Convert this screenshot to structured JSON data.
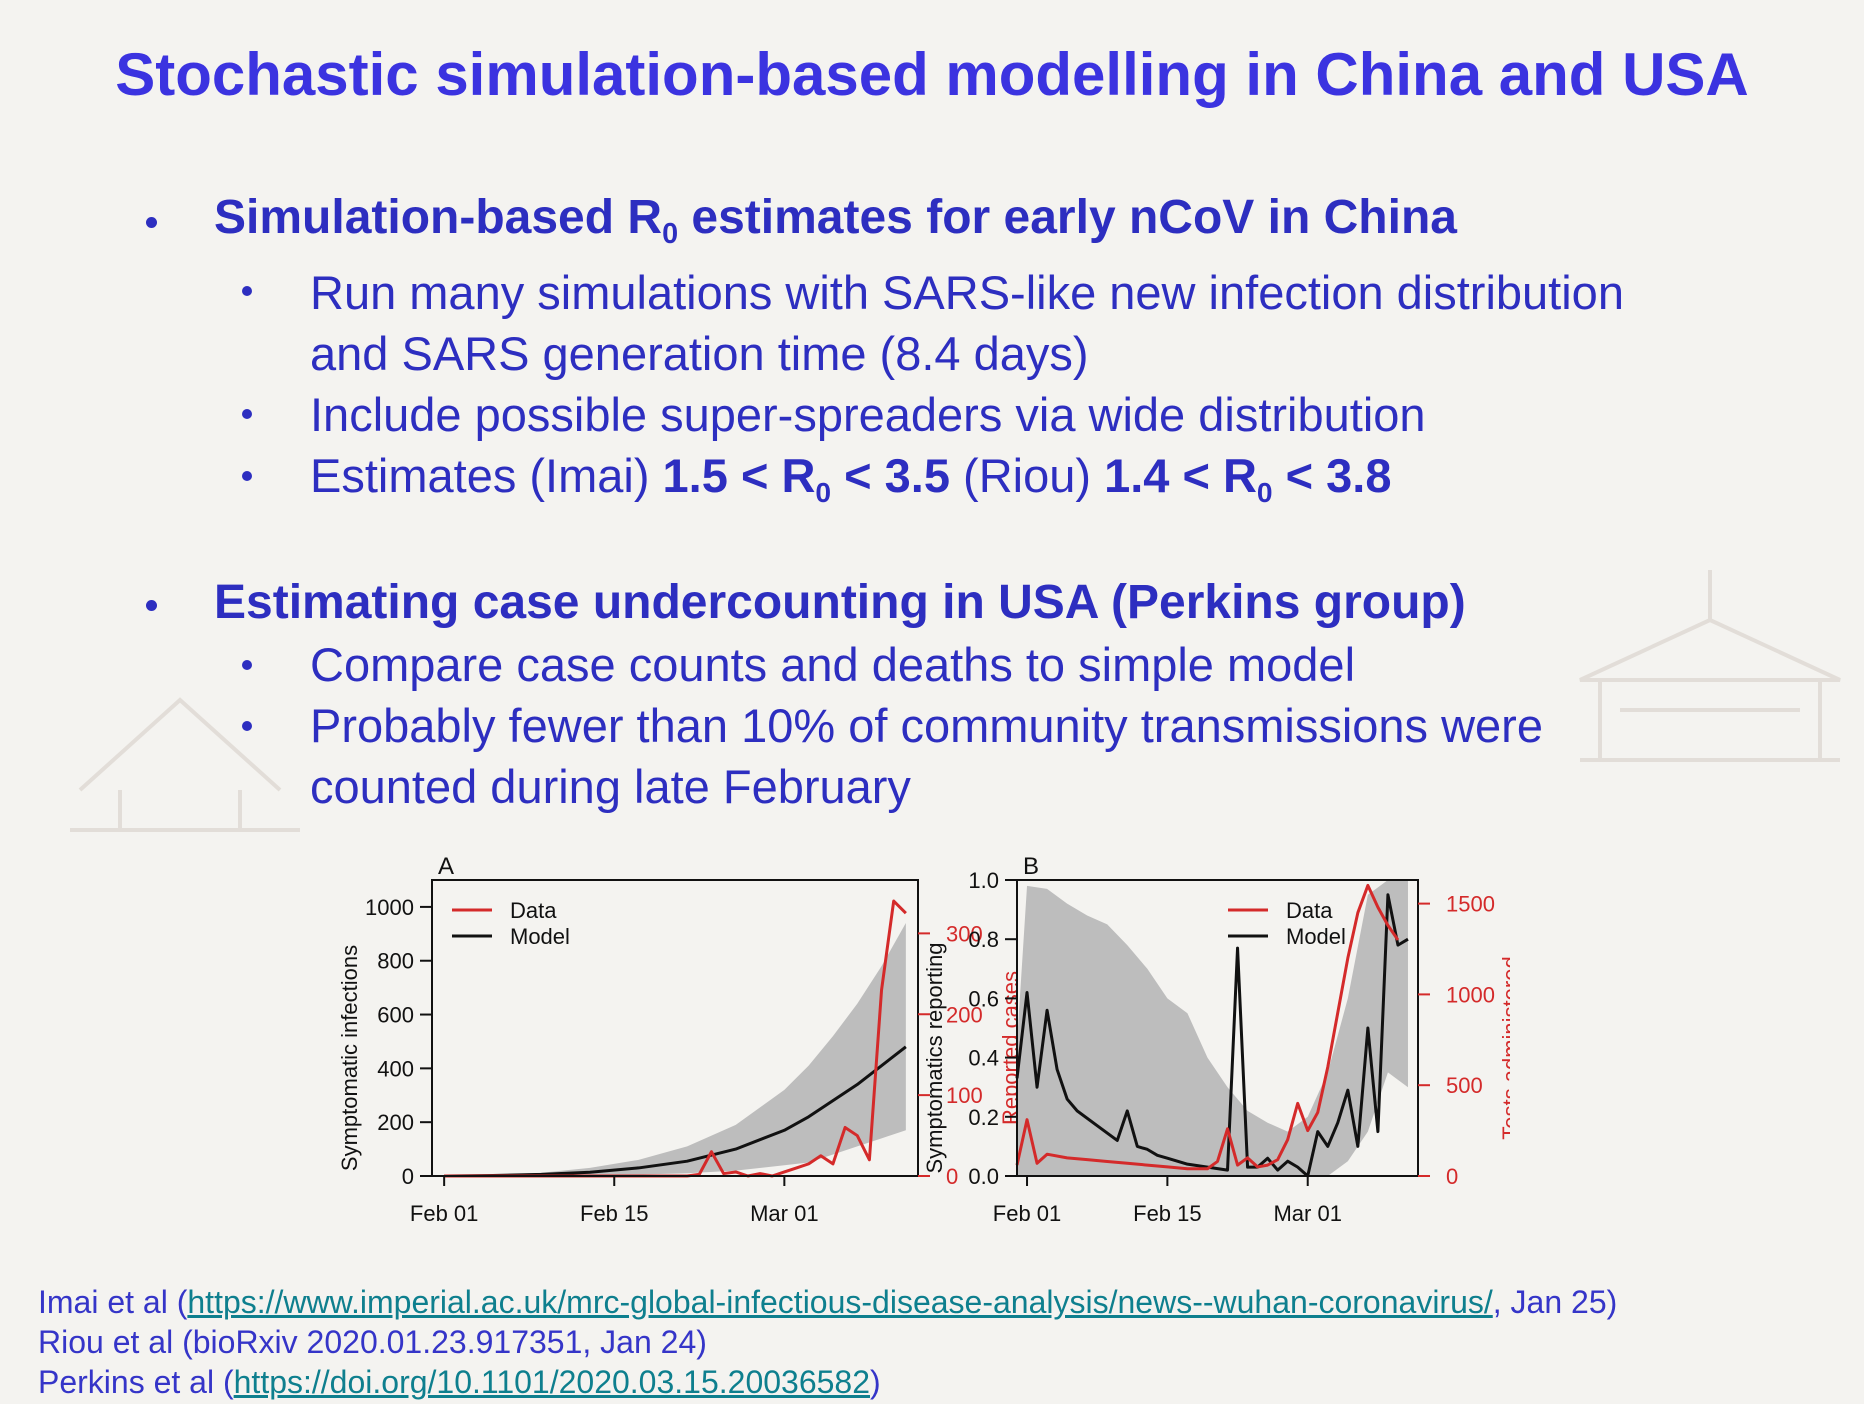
{
  "title": "Stochastic simulation-based modelling in China and USA",
  "bullet1": {
    "heading_pre": "Simulation-based R",
    "heading_sub": "0",
    "heading_post": " estimates for early nCoV in China",
    "sub1_line1": "Run many simulations with SARS-like new infection distribution",
    "sub1_line2": "and SARS generation time (8.4 days)",
    "sub2": "Include possible super-spreaders via wide distribution",
    "sub3": {
      "a": "Estimates (Imai) ",
      "b": "1.5 < R",
      "b_sub": "0",
      "c": " < 3.5",
      "d": " (Riou) ",
      "e": "1.4 < R",
      "e_sub": "0",
      "f": " < 3.8"
    }
  },
  "bullet2": {
    "heading": "Estimating case undercounting in USA (Perkins group)",
    "sub1": "Compare case counts and deaths to simple model",
    "sub2_line1": "Probably fewer than 10% of community transmissions were",
    "sub2_line2": "counted during late February"
  },
  "refs": {
    "imai": {
      "pre": "Imai et al (",
      "link": "https://www.imperial.ac.uk/mrc-global-infectious-disease-analysis/news--wuhan-coronavirus/",
      "post": ", Jan 25)"
    },
    "riou": "Riou et al (bioRxiv 2020.01.23.917351, Jan 24)",
    "perkins": {
      "pre": "Perkins et al (",
      "link": "https://doi.org/10.1101/2020.03.15.20036582",
      "post": ")"
    }
  },
  "colors": {
    "title": "#3b33e0",
    "text": "#2d2ec0",
    "link": "#0e7f8e",
    "data_line": "#d42a2a",
    "model_line": "#111111",
    "band": "#bdbdbd"
  },
  "chart_data": [
    {
      "type": "line",
      "panel_label": "A",
      "xlabel": "",
      "x_ticks": [
        "Feb 01",
        "Feb 15",
        "Mar 01"
      ],
      "x_tick_days": [
        0,
        14,
        28
      ],
      "xlim_days": [
        -1,
        39
      ],
      "ylabel": "Symptomatic infections",
      "ylim": [
        0,
        1100
      ],
      "y_ticks": [
        0,
        200,
        400,
        600,
        800,
        1000
      ],
      "ylabel_right": "Reported cases",
      "ylim_right": [
        0,
        366
      ],
      "y_ticks_right": [
        0,
        100,
        200,
        300
      ],
      "legend": [
        "Data",
        "Model"
      ],
      "legend_position": "top-left",
      "series": [
        {
          "name": "Model",
          "axis": "left",
          "x_days": [
            0,
            4,
            8,
            12,
            16,
            20,
            24,
            28,
            30,
            32,
            34,
            36,
            38
          ],
          "values": [
            0,
            2,
            6,
            14,
            30,
            55,
            100,
            170,
            220,
            280,
            340,
            410,
            480
          ]
        },
        {
          "name": "Model range",
          "axis": "left",
          "band": true,
          "x_days": [
            0,
            4,
            8,
            12,
            16,
            20,
            24,
            28,
            30,
            32,
            34,
            36,
            38
          ],
          "lower": [
            0,
            0,
            0,
            2,
            5,
            10,
            20,
            40,
            50,
            80,
            110,
            140,
            170
          ],
          "upper": [
            0,
            4,
            12,
            30,
            60,
            110,
            190,
            320,
            410,
            520,
            640,
            780,
            940
          ]
        },
        {
          "name": "Data",
          "axis": "right",
          "x_days": [
            0,
            4,
            8,
            12,
            16,
            20,
            21,
            22,
            23,
            24,
            25,
            26,
            27,
            28,
            29,
            30,
            31,
            32,
            33,
            34,
            35,
            36,
            37,
            38
          ],
          "values": [
            0,
            0,
            0,
            0,
            0,
            0,
            2,
            30,
            3,
            5,
            0,
            3,
            0,
            5,
            10,
            15,
            25,
            15,
            60,
            50,
            20,
            230,
            340,
            325
          ]
        }
      ]
    },
    {
      "type": "line",
      "panel_label": "B",
      "xlabel": "",
      "x_ticks": [
        "Feb 01",
        "Feb 15",
        "Mar 01"
      ],
      "x_tick_days": [
        0,
        14,
        28
      ],
      "xlim_days": [
        -1,
        39
      ],
      "ylabel": "Symptomatics reporting",
      "ylim": [
        0,
        1.0
      ],
      "y_ticks": [
        0.0,
        0.2,
        0.4,
        0.6,
        0.8,
        1.0
      ],
      "ylabel_right": "Tests administered",
      "ylim_right": [
        0,
        1630
      ],
      "y_ticks_right": [
        0,
        500,
        1000,
        1500
      ],
      "legend": [
        "Data",
        "Model"
      ],
      "legend_position": "top-right",
      "series": [
        {
          "name": "Model",
          "axis": "left",
          "x_days": [
            -1,
            0,
            1,
            2,
            3,
            4,
            5,
            7,
            9,
            10,
            11,
            12,
            13,
            14,
            16,
            18,
            20,
            21,
            22,
            23,
            24,
            25,
            26,
            27,
            28,
            29,
            30,
            31,
            32,
            33,
            34,
            35,
            36,
            37,
            38
          ],
          "values": [
            0.33,
            0.62,
            0.3,
            0.56,
            0.36,
            0.26,
            0.22,
            0.17,
            0.12,
            0.22,
            0.1,
            0.09,
            0.07,
            0.06,
            0.04,
            0.03,
            0.02,
            0.77,
            0.03,
            0.03,
            0.06,
            0.02,
            0.05,
            0.03,
            0.0,
            0.15,
            0.1,
            0.18,
            0.29,
            0.1,
            0.5,
            0.15,
            0.95,
            0.78,
            0.8
          ]
        },
        {
          "name": "Model range",
          "axis": "left",
          "band": true,
          "x_days": [
            -1,
            0,
            2,
            4,
            6,
            8,
            10,
            12,
            14,
            16,
            18,
            20,
            22,
            24,
            26,
            28,
            30,
            32,
            34,
            36,
            38
          ],
          "lower": [
            0.0,
            0.0,
            0.0,
            0.0,
            0.0,
            0.0,
            0.0,
            0.0,
            0.0,
            0.0,
            0.0,
            0.0,
            0.0,
            0.0,
            0.0,
            0.0,
            0.0,
            0.05,
            0.15,
            0.35,
            0.3
          ],
          "upper": [
            0.45,
            0.98,
            0.97,
            0.92,
            0.88,
            0.85,
            0.78,
            0.7,
            0.6,
            0.55,
            0.4,
            0.3,
            0.22,
            0.18,
            0.15,
            0.2,
            0.35,
            0.6,
            0.95,
            1.0,
            1.0
          ]
        },
        {
          "name": "Data",
          "axis": "right",
          "x_days": [
            -1,
            0,
            1,
            2,
            4,
            6,
            8,
            10,
            12,
            14,
            16,
            18,
            19,
            20,
            21,
            22,
            23,
            24,
            25,
            26,
            27,
            28,
            29,
            30,
            31,
            32,
            33,
            34,
            35,
            36,
            37
          ],
          "values": [
            60,
            310,
            70,
            120,
            100,
            90,
            80,
            70,
            60,
            50,
            40,
            40,
            80,
            260,
            60,
            100,
            50,
            60,
            90,
            200,
            400,
            250,
            350,
            600,
            900,
            1200,
            1450,
            1600,
            1480,
            1380,
            1300
          ]
        }
      ]
    }
  ]
}
